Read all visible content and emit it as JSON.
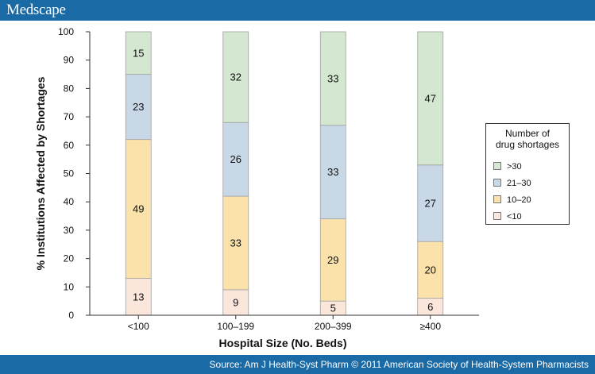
{
  "header": {
    "brand": "Medscape"
  },
  "footer": {
    "source": "Source: Am J Health-Syst Pharm © 2011 American Society of Health-System Pharmacists"
  },
  "chart_data": {
    "type": "bar",
    "stacked": true,
    "title": "",
    "xlabel": "Hospital Size (No. Beds)",
    "ylabel": "% Institutions Affected by Shortages",
    "ylim": [
      0,
      100
    ],
    "yticks": [
      0,
      10,
      20,
      30,
      40,
      50,
      60,
      70,
      80,
      90,
      100
    ],
    "categories": [
      "<100",
      "100–199",
      "200–399",
      "≥400"
    ],
    "series": [
      {
        "name": "<10",
        "color": "#fbe6dc",
        "values": [
          13,
          9,
          5,
          6
        ]
      },
      {
        "name": "10–20",
        "color": "#fbe2ab",
        "values": [
          49,
          33,
          29,
          20
        ]
      },
      {
        "name": "21–30",
        "color": "#c9d8e7",
        "values": [
          23,
          26,
          33,
          27
        ]
      },
      {
        "name": ">30",
        "color": "#d4e7d0",
        "values": [
          15,
          32,
          33,
          47
        ]
      }
    ],
    "legend": {
      "title_line1": "Number of",
      "title_line2": "drug shortages",
      "placement": "right",
      "order": [
        ">30",
        "21–30",
        "10–20",
        "<10"
      ]
    }
  }
}
